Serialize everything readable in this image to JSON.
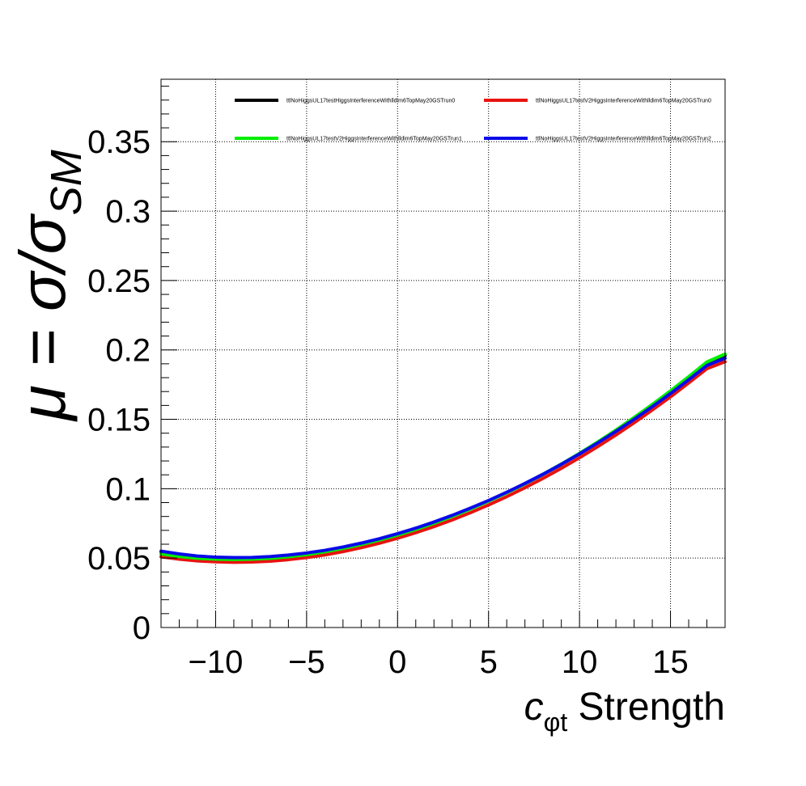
{
  "chart_data": {
    "type": "line",
    "title": "",
    "xlabel": {
      "main": "c",
      "sub": "φt",
      "rest": " Strength"
    },
    "ylabel": {
      "prefix": "μ = σ/σ",
      "sub": "SM"
    },
    "xlim": [
      -13,
      18
    ],
    "ylim": [
      0,
      0.395
    ],
    "x_ticks": [
      -10,
      -5,
      0,
      5,
      10,
      15
    ],
    "x_tick_labels": [
      "−10",
      "−5",
      "0",
      "5",
      "10",
      "15"
    ],
    "y_ticks": [
      0,
      0.05,
      0.1,
      0.15,
      0.2,
      0.25,
      0.3,
      0.35
    ],
    "y_tick_labels": [
      "0",
      "0.05",
      "0.1",
      "0.15",
      "0.2",
      "0.25",
      "0.3",
      "0.35"
    ],
    "grid": true,
    "legend_position": "top",
    "x": [
      -13,
      -12,
      -11,
      -10,
      -9,
      -8,
      -7,
      -6,
      -5,
      -4,
      -3,
      -2,
      -1,
      0,
      1,
      2,
      3,
      4,
      5,
      6,
      7,
      8,
      9,
      10,
      11,
      12,
      13,
      14,
      15,
      16,
      17,
      18
    ],
    "series": [
      {
        "name": "ttlNoHiggsUL17testHiggsInterferenceWithlldim6TopMay20GSTrun0",
        "color": "#000000",
        "values": [
          0.0545,
          0.0525,
          0.051,
          0.0503,
          0.05,
          0.0501,
          0.0507,
          0.0518,
          0.0533,
          0.0552,
          0.0576,
          0.0604,
          0.0636,
          0.0671,
          0.0711,
          0.0755,
          0.0803,
          0.0855,
          0.0911,
          0.0971,
          0.1035,
          0.1103,
          0.1175,
          0.1251,
          0.1331,
          0.1416,
          0.1504,
          0.1597,
          0.1694,
          0.1794,
          0.1899,
          0.196
        ]
      },
      {
        "name": "ttlNoHiggsUL17testV2HiggsInterferenceWithlldim6TopMay20GSTrun0",
        "color": "#e8130f",
        "values": [
          0.051,
          0.0492,
          0.048,
          0.0473,
          0.047,
          0.0472,
          0.0478,
          0.0489,
          0.0504,
          0.0523,
          0.0547,
          0.0575,
          0.0607,
          0.0643,
          0.0683,
          0.0727,
          0.0775,
          0.0827,
          0.0883,
          0.0943,
          0.1007,
          0.1075,
          0.1147,
          0.1223,
          0.1303,
          0.1387,
          0.1475,
          0.1567,
          0.1662,
          0.1762,
          0.1865,
          0.1915
        ]
      },
      {
        "name": "ttlNoHiggsUL17testV2HiggsInterferenceWithlldim6TopMay20GSTrun1",
        "color": "#00ee00",
        "values": [
          0.053,
          0.0512,
          0.0499,
          0.0492,
          0.049,
          0.0492,
          0.0498,
          0.051,
          0.0525,
          0.0545,
          0.057,
          0.0598,
          0.063,
          0.0666,
          0.0706,
          0.0751,
          0.08,
          0.0853,
          0.091,
          0.0971,
          0.1036,
          0.1105,
          0.1178,
          0.1255,
          0.1337,
          0.1423,
          0.1513,
          0.1607,
          0.1705,
          0.1807,
          0.1913,
          0.197
        ]
      },
      {
        "name": "ttlNoHiggsUL17testV2HiggsInterferenceWithlldim6TopMay20GSTrun2",
        "color": "#0a0ae8",
        "values": [
          0.055,
          0.053,
          0.0515,
          0.0507,
          0.0504,
          0.0505,
          0.0511,
          0.0522,
          0.0537,
          0.0556,
          0.058,
          0.0608,
          0.064,
          0.0676,
          0.0716,
          0.076,
          0.0808,
          0.086,
          0.0915,
          0.0975,
          0.1038,
          0.1105,
          0.1176,
          0.1251,
          0.133,
          0.1413,
          0.15,
          0.1591,
          0.1686,
          0.1785,
          0.1888,
          0.194
        ]
      }
    ]
  }
}
